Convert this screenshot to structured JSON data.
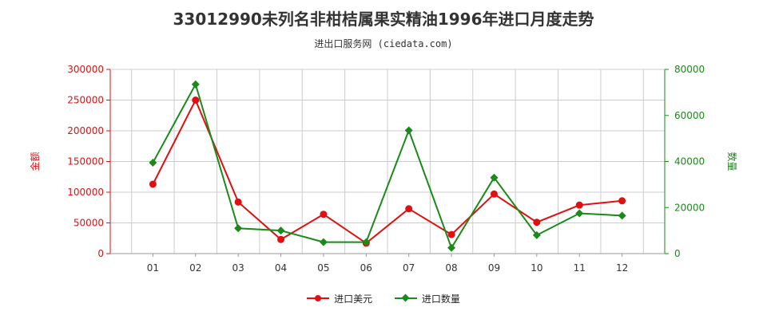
{
  "title": "33012990未列名非柑桔属果实精油1996年进口月度走势",
  "subtitle": "进出口服务网 (ciedata.com)",
  "colors": {
    "series1": "#e01010",
    "series2": "#1a8a1a",
    "grid": "#cccccc"
  },
  "chart_data": {
    "type": "line",
    "categories": [
      "01",
      "02",
      "03",
      "04",
      "05",
      "06",
      "07",
      "08",
      "09",
      "10",
      "11",
      "12"
    ],
    "left_axis": {
      "label": "金额",
      "ylim": [
        0,
        300000
      ],
      "ticks": [
        "0",
        "50000",
        "100000",
        "150000",
        "200000",
        "250000",
        "300000"
      ]
    },
    "right_axis": {
      "label": "数量",
      "ylim": [
        0,
        80000
      ],
      "ticks": [
        "0",
        "20000",
        "40000",
        "60000",
        "80000"
      ]
    },
    "series": [
      {
        "name": "进口美元",
        "axis": "left",
        "values": [
          113000,
          250000,
          84000,
          23000,
          64000,
          17000,
          73000,
          31000,
          97000,
          51000,
          79000,
          86000
        ]
      },
      {
        "name": "进口数量",
        "axis": "right",
        "values": [
          39500,
          73500,
          11000,
          10000,
          5000,
          5000,
          53500,
          2500,
          33000,
          8000,
          17500,
          16500
        ]
      }
    ],
    "grid": true,
    "legend": "bottom"
  }
}
